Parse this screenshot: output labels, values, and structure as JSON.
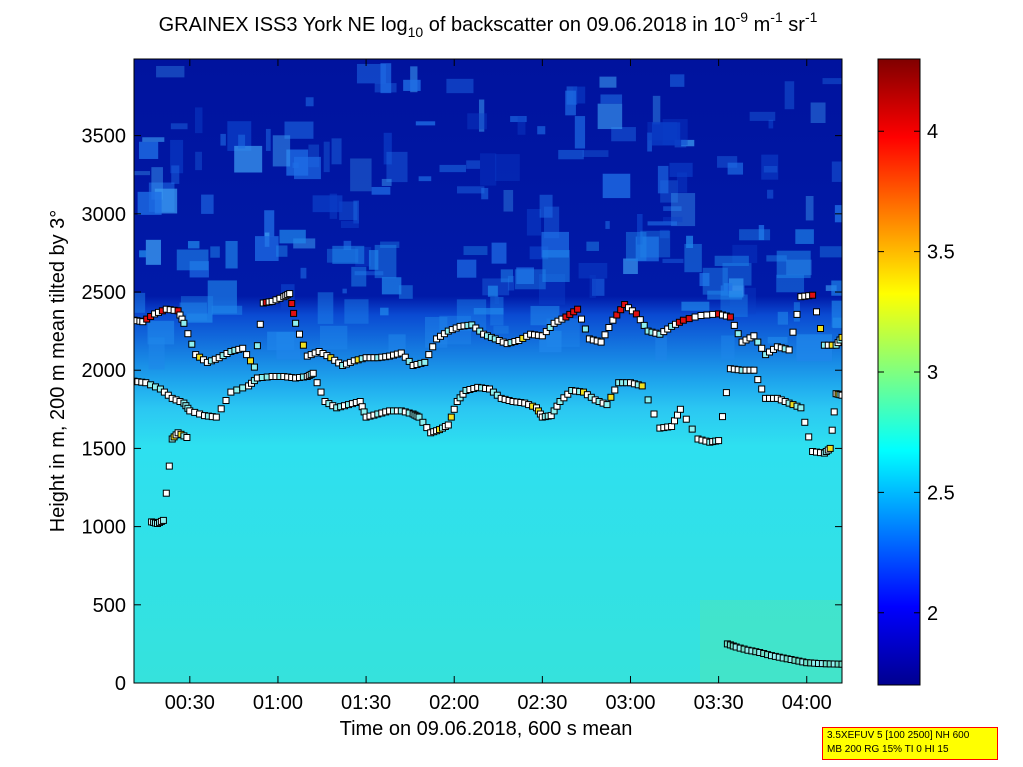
{
  "chart_data": {
    "type": "heatmap",
    "title_parts": [
      "GRAINEX ISS3 York NE log",
      "10",
      " of backscatter on 09.06.2018 in 10",
      "-9",
      " m",
      "-1",
      " sr",
      "-1"
    ],
    "xlabel": "Time on 09.06.2018, 600 s mean",
    "ylabel": "Height in m, 200 m mean tilted by 3°",
    "xlim_minutes": [
      11,
      252
    ],
    "ylim": [
      0,
      3990
    ],
    "x_ticks": [
      {
        "minutes": 30,
        "label": "00:30"
      },
      {
        "minutes": 60,
        "label": "01:00"
      },
      {
        "minutes": 90,
        "label": "01:30"
      },
      {
        "minutes": 120,
        "label": "02:00"
      },
      {
        "minutes": 150,
        "label": "02:30"
      },
      {
        "minutes": 180,
        "label": "03:00"
      },
      {
        "minutes": 210,
        "label": "03:30"
      },
      {
        "minutes": 240,
        "label": "04:00"
      }
    ],
    "y_ticks": [
      0,
      500,
      1000,
      1500,
      2000,
      2500,
      3000,
      3500
    ],
    "colorbar": {
      "range": [
        1.7,
        4.3
      ],
      "ticks": [
        2,
        2.5,
        3,
        3.5,
        4
      ],
      "tick_labels": [
        "2",
        "2.5",
        "3",
        "3.5",
        "4"
      ],
      "colormap": "jet"
    },
    "field_description": {
      "upper_value": 1.78,
      "boundary_layer_value": 2.62,
      "boundary_height_m": 2300
    },
    "layer_markers": [
      {
        "name": "layer-a",
        "points": [
          [
            11,
            1930
          ],
          [
            15,
            1920
          ],
          [
            20,
            1880
          ],
          [
            24,
            1820
          ],
          [
            28,
            1790
          ],
          [
            30,
            1740
          ],
          [
            35,
            1710
          ],
          [
            39,
            1700
          ],
          [
            44,
            1860
          ],
          [
            50,
            1900
          ],
          [
            53,
            1950
          ],
          [
            58,
            1960
          ],
          [
            62,
            1960
          ],
          [
            66,
            1950
          ],
          [
            70,
            1960
          ],
          [
            72,
            1980
          ],
          [
            76,
            1800
          ],
          [
            80,
            1760
          ],
          [
            84,
            1780
          ],
          [
            88,
            1800
          ],
          [
            90,
            1700
          ],
          [
            94,
            1720
          ],
          [
            98,
            1740
          ],
          [
            102,
            1740
          ],
          [
            106,
            1720
          ],
          [
            108,
            1700
          ],
          [
            112,
            1600
          ],
          [
            115,
            1620
          ],
          [
            118,
            1650
          ],
          [
            121,
            1800
          ],
          [
            124,
            1870
          ],
          [
            128,
            1890
          ],
          [
            132,
            1880
          ],
          [
            136,
            1820
          ],
          [
            140,
            1800
          ],
          [
            144,
            1790
          ],
          [
            148,
            1760
          ],
          [
            150,
            1700
          ],
          [
            153,
            1710
          ],
          [
            156,
            1800
          ],
          [
            160,
            1870
          ],
          [
            164,
            1860
          ],
          [
            168,
            1810
          ],
          [
            172,
            1780
          ],
          [
            176,
            1920
          ],
          [
            180,
            1920
          ],
          [
            184,
            1900
          ],
          [
            190,
            1630
          ],
          [
            194,
            1640
          ],
          [
            197,
            1750
          ],
          [
            203,
            1560
          ],
          [
            207,
            1540
          ],
          [
            210,
            1550
          ],
          [
            214,
            2010
          ],
          [
            218,
            2000
          ],
          [
            222,
            2000
          ],
          [
            226,
            1820
          ],
          [
            230,
            1820
          ],
          [
            234,
            1790
          ],
          [
            238,
            1760
          ],
          [
            242,
            1480
          ],
          [
            246,
            1470
          ],
          [
            248,
            1500
          ],
          [
            250,
            1850
          ],
          [
            252,
            1840
          ]
        ]
      },
      {
        "name": "layer-b",
        "points": [
          [
            11,
            2320
          ],
          [
            14,
            2310
          ],
          [
            18,
            2360
          ],
          [
            22,
            2390
          ],
          [
            26,
            2380
          ],
          [
            28,
            2300
          ],
          [
            32,
            2100
          ],
          [
            36,
            2050
          ],
          [
            40,
            2080
          ],
          [
            44,
            2120
          ],
          [
            48,
            2140
          ],
          [
            52,
            2020
          ],
          [
            55,
            2430
          ],
          [
            58,
            2440
          ],
          [
            62,
            2470
          ],
          [
            64,
            2490
          ],
          [
            66,
            2300
          ],
          [
            70,
            2090
          ],
          [
            74,
            2120
          ],
          [
            78,
            2080
          ],
          [
            82,
            2030
          ],
          [
            86,
            2060
          ],
          [
            90,
            2080
          ],
          [
            94,
            2080
          ],
          [
            98,
            2090
          ],
          [
            102,
            2110
          ],
          [
            106,
            2030
          ],
          [
            110,
            2050
          ],
          [
            114,
            2200
          ],
          [
            118,
            2250
          ],
          [
            122,
            2280
          ],
          [
            126,
            2290
          ],
          [
            130,
            2230
          ],
          [
            134,
            2200
          ],
          [
            138,
            2170
          ],
          [
            142,
            2190
          ],
          [
            146,
            2230
          ],
          [
            150,
            2220
          ],
          [
            154,
            2300
          ],
          [
            158,
            2340
          ],
          [
            162,
            2390
          ],
          [
            166,
            2200
          ],
          [
            170,
            2180
          ],
          [
            174,
            2320
          ],
          [
            178,
            2420
          ],
          [
            182,
            2360
          ],
          [
            186,
            2250
          ],
          [
            190,
            2230
          ],
          [
            194,
            2280
          ],
          [
            198,
            2320
          ],
          [
            204,
            2350
          ],
          [
            210,
            2360
          ],
          [
            214,
            2340
          ],
          [
            218,
            2180
          ],
          [
            222,
            2220
          ],
          [
            226,
            2100
          ],
          [
            230,
            2150
          ],
          [
            234,
            2130
          ],
          [
            238,
            2470
          ],
          [
            242,
            2480
          ],
          [
            246,
            2160
          ],
          [
            250,
            2160
          ],
          [
            252,
            2210
          ]
        ]
      },
      {
        "name": "near-ground",
        "points": [
          [
            213,
            250
          ],
          [
            216,
            230
          ],
          [
            220,
            210
          ],
          [
            224,
            195
          ],
          [
            228,
            175
          ],
          [
            232,
            160
          ],
          [
            236,
            145
          ],
          [
            240,
            130
          ],
          [
            244,
            125
          ],
          [
            248,
            122
          ],
          [
            252,
            120
          ]
        ]
      },
      {
        "name": "isolated",
        "points": [
          [
            17,
            1030
          ],
          [
            19,
            1020
          ],
          [
            21,
            1040
          ],
          [
            24,
            1560
          ],
          [
            26,
            1600
          ],
          [
            29,
            1570
          ]
        ]
      }
    ],
    "marker_colors": {
      "white": "#ffffff",
      "cyan": "#8ff0f0",
      "red": "#e01010",
      "yellow": "#f0e020"
    }
  },
  "info_box": {
    "line1": "3.5XEFUV 5 [100 2500] NH 600",
    "line2": "MB 200 RG 15% TI 0 HI 15",
    "background": "#ffff00",
    "border": "#ff0000"
  }
}
